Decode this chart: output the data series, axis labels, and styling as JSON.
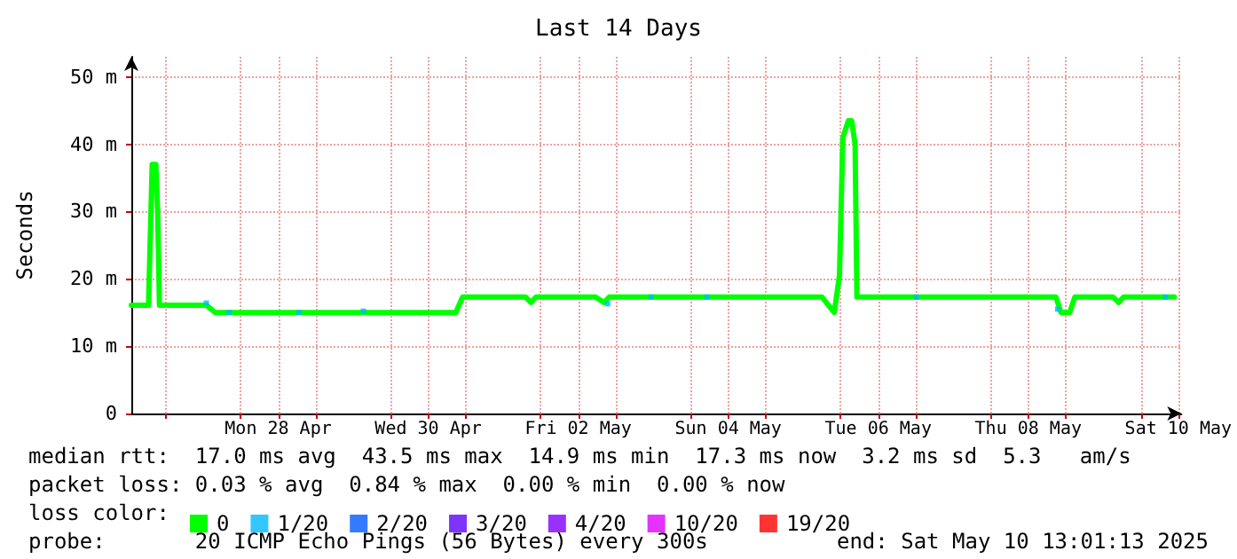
{
  "chart_data": {
    "type": "line",
    "title": "Last 14 Days",
    "ylabel": "Seconds",
    "legend_title": "loss color:",
    "annotations": [
      "median rtt:  17.0 ms avg  43.5 ms max  14.9 ms min  17.3 ms now  3.2 ms sd  5.3   am/s",
      "packet loss: 0.03 % avg  0.84 % max  0.00 % min  0.00 % now",
      "probe:       20 ICMP Echo Pings (56 Bytes) every 300s",
      "end: Sat May 10 13:01:13 2025"
    ],
    "x": [
      "2025-04-26T13:00",
      "2025-04-26T18:30",
      "2025-04-26T19:40",
      "2025-04-26T20:50",
      "2025-04-26T21:25",
      "2025-04-26T22:00",
      "2025-04-27T13:00",
      "2025-04-27T15:50",
      "2025-04-30T20:50",
      "2025-04-30T23:00",
      "2025-05-01T19:10",
      "2025-05-01T20:50",
      "2025-05-01T22:30",
      "2025-05-02T17:30",
      "2025-05-02T20:15",
      "2025-05-02T21:55",
      "2025-05-05T18:00",
      "2025-05-05T21:55",
      "2025-05-05T23:35",
      "2025-05-06T00:40",
      "2025-05-06T02:25",
      "2025-05-06T03:30",
      "2025-05-06T04:35",
      "2025-05-06T05:10",
      "2025-05-08T20:50",
      "2025-05-08T22:30",
      "2025-05-09T01:15",
      "2025-05-09T02:55",
      "2025-05-09T15:10",
      "2025-05-09T16:55",
      "2025-05-09T18:30",
      "2025-05-10T10:45"
    ],
    "series": [
      {
        "name": "0",
        "color": "#00ff00",
        "values": [
          16.1,
          16.1,
          37,
          37,
          30,
          16.1,
          16.1,
          15,
          15,
          17.3,
          17.3,
          16.5,
          17.3,
          17.3,
          16.5,
          17.3,
          17.3,
          15,
          20.5,
          41,
          43.5,
          43.5,
          40,
          17.3,
          17.3,
          15,
          15,
          17.3,
          17.3,
          16.5,
          17.3,
          17.3
        ]
      },
      {
        "name": "1/20",
        "color": "#00b8ff",
        "type": "scatter",
        "marker": "square",
        "x": [
          "2025-04-27T13:00",
          "2025-04-27T20:15",
          "2025-04-28T18:35",
          "2025-04-29T15:15",
          "2025-05-02T21:25",
          "2025-05-03T11:20",
          "2025-05-04T05:10",
          "2025-05-07T00:10",
          "2025-05-08T21:25",
          "2025-05-10T07:55"
        ],
        "values": [
          16.4,
          15,
          15,
          15.2,
          16.3,
          17.3,
          17.3,
          17.3,
          15.5,
          17.3
        ]
      },
      {
        "name": "2/20",
        "color": "#0059ff",
        "type": "scatter",
        "marker": "square",
        "values": [
          null,
          null,
          null,
          null,
          null,
          null,
          null,
          null,
          null,
          null,
          null,
          null,
          null,
          null,
          null,
          null,
          null,
          null,
          null,
          null,
          null,
          null,
          null,
          null,
          null,
          null,
          null,
          null,
          null,
          null,
          null,
          null
        ]
      },
      {
        "name": "3/20",
        "color": "#5e00ff",
        "type": "scatter",
        "marker": "square",
        "values": [
          null,
          null,
          null,
          null,
          null,
          null,
          null,
          null,
          null,
          null,
          null,
          null,
          null,
          null,
          null,
          null,
          null,
          null,
          null,
          null,
          null,
          null,
          null,
          null,
          null,
          null,
          null,
          null,
          null,
          null,
          null,
          null
        ]
      },
      {
        "name": "4/20",
        "color": "#7e00ff",
        "type": "scatter",
        "marker": "square",
        "values": [
          null,
          null,
          null,
          null,
          null,
          null,
          null,
          null,
          null,
          null,
          null,
          null,
          null,
          null,
          null,
          null,
          null,
          null,
          null,
          null,
          null,
          null,
          null,
          null,
          null,
          null,
          null,
          null,
          null,
          null,
          null,
          null
        ]
      },
      {
        "name": "10/20",
        "color": "#dd00ff",
        "type": "scatter",
        "marker": "square",
        "values": [
          null,
          null,
          null,
          null,
          null,
          null,
          null,
          null,
          null,
          null,
          null,
          null,
          null,
          null,
          null,
          null,
          null,
          null,
          null,
          null,
          null,
          null,
          null,
          null,
          null,
          null,
          null,
          null,
          null,
          null,
          null,
          null
        ]
      },
      {
        "name": "19/20",
        "color": "#ff0000",
        "type": "scatter",
        "marker": "square",
        "values": [
          null,
          null,
          null,
          null,
          null,
          null,
          null,
          null,
          null,
          null,
          null,
          null,
          null,
          null,
          null,
          null,
          null,
          null,
          null,
          null,
          null,
          null,
          null,
          null,
          null,
          null,
          null,
          null,
          null,
          null,
          null,
          null
        ]
      }
    ],
    "xlim": [
      "2025-04-26T13:00",
      "2025-05-10T13:00"
    ],
    "xticks": [
      {
        "value": "2025-04-27",
        "label": null
      },
      {
        "value": "2025-04-28",
        "label": null
      },
      {
        "value": "2025-04-28T12:00",
        "label": "Mon 28 Apr"
      },
      {
        "value": "2025-04-29",
        "label": null
      },
      {
        "value": "2025-04-30",
        "label": null
      },
      {
        "value": "2025-04-30T12:00",
        "label": "Wed 30 Apr"
      },
      {
        "value": "2025-05-01",
        "label": null
      },
      {
        "value": "2025-05-02",
        "label": null
      },
      {
        "value": "2025-05-02T12:00",
        "label": "Fri 02 May"
      },
      {
        "value": "2025-05-03",
        "label": null
      },
      {
        "value": "2025-05-04",
        "label": null
      },
      {
        "value": "2025-05-04T12:00",
        "label": "Sun 04 May"
      },
      {
        "value": "2025-05-05",
        "label": null
      },
      {
        "value": "2025-05-06",
        "label": null
      },
      {
        "value": "2025-05-06T12:00",
        "label": "Tue 06 May"
      },
      {
        "value": "2025-05-07",
        "label": null
      },
      {
        "value": "2025-05-08",
        "label": null
      },
      {
        "value": "2025-05-08T12:00",
        "label": "Thu 08 May"
      },
      {
        "value": "2025-05-09",
        "label": null
      },
      {
        "value": "2025-05-10",
        "label": null
      },
      {
        "value": "2025-05-10T12:00",
        "label": "Sat 10 May"
      }
    ],
    "ylim": [
      0,
      53
    ],
    "yticks": [
      0,
      {
        "value": 10,
        "label": "10 m"
      },
      {
        "value": 20,
        "label": "20 m"
      },
      {
        "value": 30,
        "label": "30 m"
      },
      {
        "value": 40,
        "label": "40 m"
      },
      {
        "value": 50,
        "label": "50 m"
      }
    ],
    "grid": true,
    "legend": "bottom",
    "line_style": "solid"
  }
}
